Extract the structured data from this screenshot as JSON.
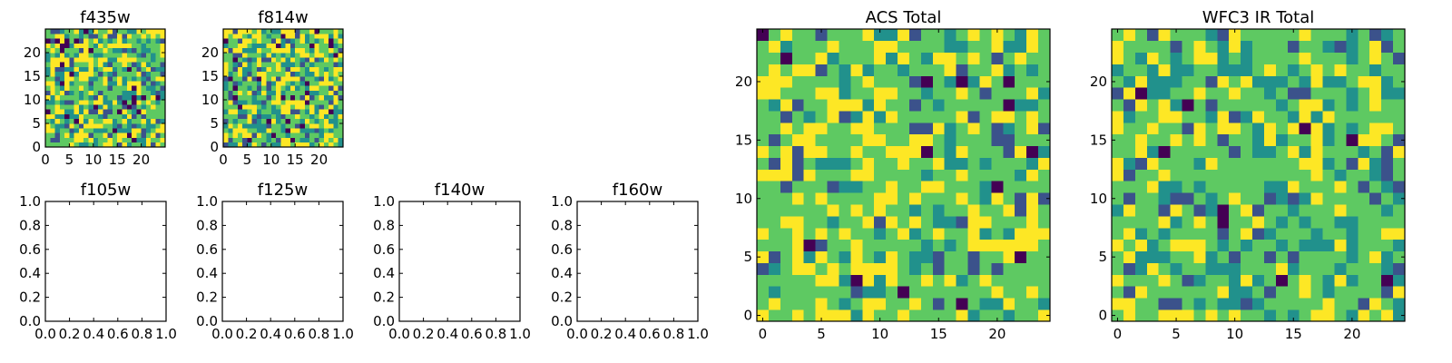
{
  "figure": {
    "background": "#ffffff",
    "colormap": [
      "#440154",
      "#3b528b",
      "#21918c",
      "#5ec962",
      "#fde725"
    ]
  },
  "chart_data": [
    {
      "id": "f435w",
      "type": "heatmap",
      "title": "f435w",
      "xlabel": "",
      "ylabel": "",
      "xlim": [
        0,
        25
      ],
      "ylim": [
        0,
        25
      ],
      "xticks": [
        0,
        5,
        10,
        15,
        20
      ],
      "yticks": [
        0,
        5,
        10,
        15,
        20
      ],
      "xtick_labels": [
        "0",
        "5",
        "10",
        "15",
        "20"
      ],
      "ytick_labels": [
        "0",
        "5",
        "10",
        "15",
        "20"
      ],
      "grid": false,
      "legend": "none",
      "size": [
        25,
        25
      ],
      "seed": 11,
      "dark_fraction": 0.04,
      "level_weights": [
        1,
        3,
        6,
        10,
        8
      ]
    },
    {
      "id": "f814w",
      "type": "heatmap",
      "title": "f814w",
      "xlabel": "",
      "ylabel": "",
      "xlim": [
        0,
        25
      ],
      "ylim": [
        0,
        25
      ],
      "xticks": [
        0,
        5,
        10,
        15,
        20
      ],
      "yticks": [
        0,
        5,
        10,
        15,
        20
      ],
      "xtick_labels": [
        "0",
        "5",
        "10",
        "15",
        "20"
      ],
      "ytick_labels": [
        "0",
        "5",
        "10",
        "15",
        "20"
      ],
      "grid": false,
      "legend": "none",
      "size": [
        25,
        25
      ],
      "seed": 23,
      "dark_fraction": 0.04,
      "level_weights": [
        1,
        3,
        6,
        10,
        8
      ]
    },
    {
      "id": "f105w",
      "type": "scatter",
      "title": "f105w",
      "xlabel": "",
      "ylabel": "",
      "xlim": [
        0,
        1
      ],
      "ylim": [
        0,
        1
      ],
      "xticks": [
        0,
        0.2,
        0.4,
        0.6,
        0.8,
        1.0
      ],
      "yticks": [
        0,
        0.2,
        0.4,
        0.6,
        0.8,
        1.0
      ],
      "xtick_labels": [
        "0.0",
        "0.2",
        "0.4",
        "0.6",
        "0.8",
        "1.0"
      ],
      "ytick_labels": [
        "0.0",
        "0.2",
        "0.4",
        "0.6",
        "0.8",
        "1.0"
      ],
      "grid": false,
      "legend": "none",
      "series": []
    },
    {
      "id": "f125w",
      "type": "scatter",
      "title": "f125w",
      "xlabel": "",
      "ylabel": "",
      "xlim": [
        0,
        1
      ],
      "ylim": [
        0,
        1
      ],
      "xticks": [
        0,
        0.2,
        0.4,
        0.6,
        0.8,
        1.0
      ],
      "yticks": [
        0,
        0.2,
        0.4,
        0.6,
        0.8,
        1.0
      ],
      "xtick_labels": [
        "0.0",
        "0.2",
        "0.4",
        "0.6",
        "0.8",
        "1.0"
      ],
      "ytick_labels": [
        "0.0",
        "0.2",
        "0.4",
        "0.6",
        "0.8",
        "1.0"
      ],
      "grid": false,
      "legend": "none",
      "series": []
    },
    {
      "id": "f140w",
      "type": "scatter",
      "title": "f140w",
      "xlabel": "",
      "ylabel": "",
      "xlim": [
        0,
        1
      ],
      "ylim": [
        0,
        1
      ],
      "xticks": [
        0,
        0.2,
        0.4,
        0.6,
        0.8,
        1.0
      ],
      "yticks": [
        0,
        0.2,
        0.4,
        0.6,
        0.8,
        1.0
      ],
      "xtick_labels": [
        "0.0",
        "0.2",
        "0.4",
        "0.6",
        "0.8",
        "1.0"
      ],
      "ytick_labels": [
        "0.0",
        "0.2",
        "0.4",
        "0.6",
        "0.8",
        "1.0"
      ],
      "grid": false,
      "legend": "none",
      "series": []
    },
    {
      "id": "f160w",
      "type": "scatter",
      "title": "f160w",
      "xlabel": "",
      "ylabel": "",
      "xlim": [
        0,
        1
      ],
      "ylim": [
        0,
        1
      ],
      "xticks": [
        0,
        0.2,
        0.4,
        0.6,
        0.8,
        1.0
      ],
      "yticks": [
        0,
        0.2,
        0.4,
        0.6,
        0.8,
        1.0
      ],
      "xtick_labels": [
        "0.0",
        "0.2",
        "0.4",
        "0.6",
        "0.8",
        "1.0"
      ],
      "ytick_labels": [
        "0.0",
        "0.2",
        "0.4",
        "0.6",
        "0.8",
        "1.0"
      ],
      "grid": false,
      "legend": "none",
      "series": []
    },
    {
      "id": "acs-total",
      "type": "heatmap",
      "title": "ACS Total",
      "xlabel": "",
      "ylabel": "",
      "xlim": [
        -0.5,
        24.5
      ],
      "ylim": [
        -0.5,
        24.5
      ],
      "xticks": [
        0,
        5,
        10,
        15,
        20
      ],
      "yticks": [
        0,
        5,
        10,
        15,
        20
      ],
      "xtick_labels": [
        "0",
        "5",
        "10",
        "15",
        "20"
      ],
      "ytick_labels": [
        "0",
        "5",
        "10",
        "15",
        "20"
      ],
      "grid": false,
      "legend": "none",
      "size": [
        25,
        25
      ],
      "seed": 37,
      "dark_fraction": 0.015,
      "level_weights": [
        0.3,
        1.5,
        4,
        12,
        6
      ]
    },
    {
      "id": "wfc3-ir-total",
      "type": "heatmap",
      "title": "WFC3 IR Total",
      "xlabel": "",
      "ylabel": "",
      "xlim": [
        -0.5,
        24.5
      ],
      "ylim": [
        -0.5,
        24.5
      ],
      "xticks": [
        0,
        5,
        10,
        15,
        20
      ],
      "yticks": [
        0,
        5,
        10,
        15,
        20
      ],
      "xtick_labels": [
        "0",
        "5",
        "10",
        "15",
        "20"
      ],
      "ytick_labels": [
        "0",
        "5",
        "10",
        "15",
        "20"
      ],
      "grid": false,
      "legend": "none",
      "size": [
        25,
        25
      ],
      "seed": 53,
      "dark_fraction": 0.02,
      "level_weights": [
        0.3,
        1.5,
        5,
        12,
        4
      ]
    }
  ]
}
